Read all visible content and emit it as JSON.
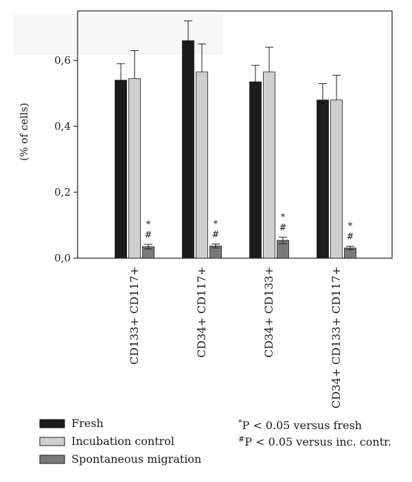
{
  "chart_data": {
    "type": "bar",
    "title": "",
    "xlabel": "",
    "ylabel": "(% of cells)",
    "ylim": [
      0,
      0.75
    ],
    "yticks": [
      0.0,
      0.2,
      0.4,
      0.6
    ],
    "ytick_labels": [
      "0,0",
      "0,2",
      "0,4",
      "0,6"
    ],
    "categories": [
      "CD133+ CD117+",
      "CD34+ CD117+",
      "CD34+ CD133+",
      "CD34+ CD133+ CD117+"
    ],
    "series": [
      {
        "name": "Fresh",
        "color": "#1c1c1c",
        "values": [
          0.54,
          0.66,
          0.535,
          0.48
        ],
        "errors": [
          0.05,
          0.06,
          0.05,
          0.05
        ]
      },
      {
        "name": "Incubation control",
        "color": "#cfcfcf",
        "values": [
          0.545,
          0.565,
          0.565,
          0.48
        ],
        "errors": [
          0.085,
          0.085,
          0.075,
          0.075
        ]
      },
      {
        "name": "Spontaneous migration",
        "color": "#7a7a7a",
        "values": [
          0.035,
          0.037,
          0.054,
          0.031
        ],
        "errors": [
          0.007,
          0.006,
          0.01,
          0.005
        ],
        "annotations": [
          "*\n#",
          "*\n#",
          "*\n#",
          "*\n#"
        ]
      }
    ],
    "grid": false,
    "legend_position": "bottom-left",
    "notes": [
      {
        "symbol": "*",
        "text": "P < 0.05 versus fresh"
      },
      {
        "symbol": "#",
        "text": "P < 0.05 versus inc. contr."
      }
    ]
  }
}
